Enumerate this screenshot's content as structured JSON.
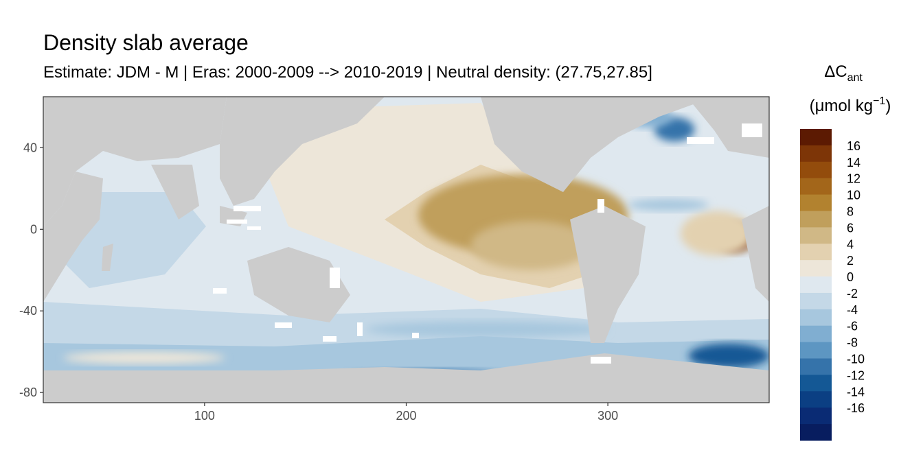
{
  "chart_data": {
    "type": "heatmap",
    "title": "Density slab average",
    "subtitle": "Estimate: JDM - M | Eras: 2000-2009 --> 2010-2019 | Neutral density: (27.75,27.85]",
    "xlabel": "",
    "ylabel": "",
    "xlim": [
      20,
      380
    ],
    "ylim": [
      -85,
      65
    ],
    "x_ticks": [
      100,
      200,
      300
    ],
    "y_ticks": [
      40,
      0,
      -40,
      -80
    ],
    "x_tick_labels": [
      "100",
      "200",
      "300"
    ],
    "y_tick_labels": [
      "40",
      "0",
      "-40",
      "-80"
    ],
    "land_color": "#cccccc",
    "missing_color": "#ffffff",
    "legend": {
      "title_main": "ΔC",
      "title_sub": "ant",
      "unit_open": "(μmol kg",
      "unit_sup": "−1",
      "unit_close": ")",
      "placement": "right",
      "labels": [
        "16",
        "14",
        "12",
        "10",
        "8",
        "6",
        "4",
        "2",
        "0",
        "-2",
        "-4",
        "-6",
        "-8",
        "-10",
        "-12",
        "-14",
        "-16"
      ],
      "colors": [
        "#5c1a02",
        "#7d3507",
        "#934c0c",
        "#a3661a",
        "#b2822f",
        "#c09f5c",
        "#d0b886",
        "#e3d1b0",
        "#ede6d9",
        "#dfe8ef",
        "#c4d8e7",
        "#a7c7de",
        "#80aed1",
        "#5d96c2",
        "#3573aa",
        "#145895",
        "#0b3f83",
        "#0a2b74",
        "#081d5f"
      ]
    },
    "regions": [
      {
        "type": "ellipse",
        "cx": 258,
        "cy": 7,
        "rx": 52,
        "ry": 20,
        "value": 7
      },
      {
        "type": "ellipse",
        "cx": 262,
        "cy": -8,
        "rx": 30,
        "ry": 12,
        "value": 6
      },
      {
        "type": "ellipse",
        "cx": 363,
        "cy": -4,
        "rx": 10,
        "ry": 7,
        "value": 16
      },
      {
        "type": "ellipse",
        "cx": 354,
        "cy": -2,
        "rx": 18,
        "ry": 11,
        "value": 4
      },
      {
        "type": "ellipse",
        "cx": 333,
        "cy": 49,
        "rx": 10,
        "ry": 6,
        "value": -10
      },
      {
        "type": "ellipse",
        "cx": 320,
        "cy": 55,
        "rx": 12,
        "ry": 5,
        "value": -6
      },
      {
        "type": "ellipse",
        "cx": 330,
        "cy": 12,
        "rx": 20,
        "ry": 3,
        "value": -4
      },
      {
        "type": "ellipse",
        "cx": 240,
        "cy": -49,
        "rx": 60,
        "ry": 4,
        "value": -4
      },
      {
        "type": "ellipse",
        "cx": 210,
        "cy": -73,
        "rx": 40,
        "ry": 4,
        "value": -10
      },
      {
        "type": "ellipse",
        "cx": 360,
        "cy": -62,
        "rx": 20,
        "ry": 6,
        "value": -12
      },
      {
        "type": "ellipse",
        "cx": 70,
        "cy": -63,
        "rx": 40,
        "ry": 3,
        "value": 2
      }
    ]
  }
}
